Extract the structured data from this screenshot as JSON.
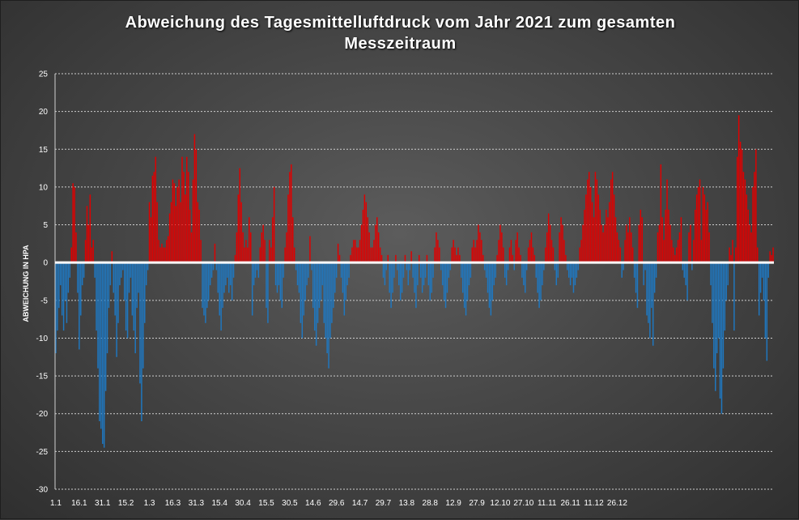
{
  "chart_data": {
    "type": "bar",
    "title": "Abweichung des Tagesmittelluftdruck vom Jahr 2021 zum gesamten\nMesszeitraum",
    "ylabel": "ABWEICHUNG IN HPA",
    "xlabel": "",
    "ylim": [
      -30,
      25
    ],
    "yticks": [
      25,
      20,
      15,
      10,
      5,
      0,
      -5,
      -10,
      -15,
      -20,
      -25,
      -30
    ],
    "grid": true,
    "legend": "none",
    "colors": {
      "positive": "#e00000",
      "negative": "#1f78c1",
      "zero_line": "#ffffff",
      "grid": "#cfcfcf"
    },
    "x_tick_labels": [
      {
        "day": 1,
        "label": "1.1"
      },
      {
        "day": 16,
        "label": "16.1"
      },
      {
        "day": 31,
        "label": "31.1"
      },
      {
        "day": 46,
        "label": "15.2"
      },
      {
        "day": 61,
        "label": "1.3"
      },
      {
        "day": 76,
        "label": "16.3"
      },
      {
        "day": 91,
        "label": "31.3"
      },
      {
        "day": 106,
        "label": "15.4"
      },
      {
        "day": 121,
        "label": "30.4"
      },
      {
        "day": 136,
        "label": "15.5"
      },
      {
        "day": 151,
        "label": "30.5"
      },
      {
        "day": 166,
        "label": "14.6"
      },
      {
        "day": 181,
        "label": "29.6"
      },
      {
        "day": 196,
        "label": "14.7"
      },
      {
        "day": 211,
        "label": "29.7"
      },
      {
        "day": 226,
        "label": "13.8"
      },
      {
        "day": 241,
        "label": "28.8"
      },
      {
        "day": 256,
        "label": "12.9"
      },
      {
        "day": 271,
        "label": "27.9"
      },
      {
        "day": 286,
        "label": "12.10"
      },
      {
        "day": 301,
        "label": "27.10"
      },
      {
        "day": 316,
        "label": "11.11"
      },
      {
        "day": 331,
        "label": "26.11"
      },
      {
        "day": 346,
        "label": "11.12"
      },
      {
        "day": 361,
        "label": "26.12"
      }
    ],
    "values": [
      -12,
      -9,
      -6,
      -3,
      -7,
      -9,
      -5,
      -8,
      -4,
      -2,
      2,
      10.5,
      10,
      4,
      -4,
      -11.5,
      -7,
      -3,
      -2,
      3,
      7.5,
      5,
      9,
      2,
      3,
      -2,
      -9,
      -14,
      -21,
      -22,
      -24,
      -24.5,
      -17,
      -12,
      -6,
      -3,
      1.5,
      -4,
      -7,
      -12.5,
      -8,
      -3,
      -2,
      -1,
      -5,
      -9,
      -10,
      -4,
      -2,
      -7,
      -9,
      -12,
      -6,
      -4,
      -16,
      -21,
      -14,
      -8,
      -3,
      -1,
      8,
      6,
      11.5,
      12,
      14,
      8,
      3,
      2,
      2.5,
      2,
      2,
      3,
      3.5,
      6.5,
      8,
      11,
      10.5,
      7.5,
      10,
      11,
      8,
      14,
      12,
      9,
      14,
      12,
      7,
      4,
      11,
      17,
      15,
      8,
      7,
      3,
      -6,
      -7,
      -8,
      -6,
      -5,
      -3,
      -2,
      -1,
      2.5,
      -1,
      -4,
      -7,
      -9,
      -6,
      -4,
      -3,
      -2,
      -4,
      -3,
      -5,
      -2,
      1,
      4,
      9,
      12.5,
      8,
      4,
      2,
      3,
      2,
      6,
      4,
      -7,
      -3,
      -2,
      -1,
      -2,
      2,
      4,
      5,
      3,
      -6,
      -8,
      3,
      2,
      6,
      10,
      -3,
      -4,
      -3,
      -5,
      -6,
      -2,
      2,
      4,
      9,
      12,
      13,
      6,
      2,
      -1,
      -3,
      -4,
      -8,
      -10,
      -7,
      -5,
      -3,
      -2,
      3.5,
      -1,
      -6,
      -9,
      -11,
      -8,
      -6,
      -5,
      -3,
      -8,
      -10,
      -12,
      -14,
      -10,
      -8,
      -6,
      -4,
      -2,
      2.5,
      1,
      -2,
      -4,
      -7,
      -5,
      -3,
      -2,
      1,
      2,
      3,
      3,
      2,
      2,
      3,
      5,
      7,
      9,
      8,
      6,
      4,
      2,
      2,
      3,
      5,
      6,
      4,
      2,
      1,
      -2,
      -3,
      -1,
      1,
      -4,
      -6,
      -4,
      -2,
      1,
      -1,
      -3,
      -5,
      -4,
      -2,
      1,
      -1,
      -3,
      -1,
      1.5,
      -2,
      -4,
      -6,
      -3,
      1,
      -2,
      -4,
      -3,
      -2,
      1,
      -3,
      -5,
      -4,
      -2,
      2,
      4,
      3,
      2,
      -1,
      -3,
      -5,
      -6,
      -4,
      -2,
      -1,
      2,
      3,
      2,
      1,
      2,
      1,
      -2,
      -4,
      -6,
      -7,
      -5,
      -3,
      -2,
      2,
      3,
      2,
      3,
      5,
      4,
      3,
      1,
      -1,
      -2,
      -4,
      -6,
      -7,
      -5,
      -3,
      -2,
      1,
      3,
      5,
      4,
      2,
      -2,
      -3,
      -1,
      2,
      3,
      1,
      -1,
      3,
      4,
      2,
      1,
      -2,
      -3,
      -4,
      -1,
      2,
      3,
      4,
      2,
      1,
      -2,
      -4,
      -6,
      -5,
      -3,
      -1,
      2,
      4,
      6.5,
      5,
      3,
      2,
      -1,
      -3,
      -2,
      4,
      6,
      5,
      3,
      1,
      -1,
      -2,
      -3,
      -2,
      -4,
      -3,
      -2,
      -1,
      2,
      3,
      5,
      7,
      9,
      11,
      12,
      10,
      8,
      6,
      12,
      11,
      9,
      7,
      5,
      4,
      5,
      7,
      6,
      8,
      11,
      12,
      9,
      6,
      4,
      3,
      2,
      -2,
      -1,
      3,
      5,
      4,
      6,
      4,
      2,
      -2,
      -4,
      -6,
      5,
      7,
      6,
      -3,
      -1,
      -7,
      -8,
      -10,
      -6,
      -11,
      -4,
      -2,
      4,
      5,
      13,
      6,
      3,
      7,
      11,
      7,
      5,
      3,
      2,
      1,
      2,
      3,
      4,
      6,
      -1,
      -2,
      -3,
      -5,
      4,
      5,
      -1,
      3,
      7,
      9,
      10,
      11,
      3,
      10,
      9,
      7,
      8,
      4,
      -3,
      -8,
      -14,
      -17,
      -12,
      -10,
      -18,
      -20,
      -14,
      -9,
      -5,
      -3,
      2,
      1,
      3,
      -9,
      2,
      14,
      19.5,
      16,
      15,
      12,
      11,
      9,
      7,
      5,
      4,
      10,
      12,
      15,
      2,
      -7,
      -4,
      -2,
      -5,
      -10,
      -13,
      -2,
      1.5,
      1,
      2
    ]
  }
}
